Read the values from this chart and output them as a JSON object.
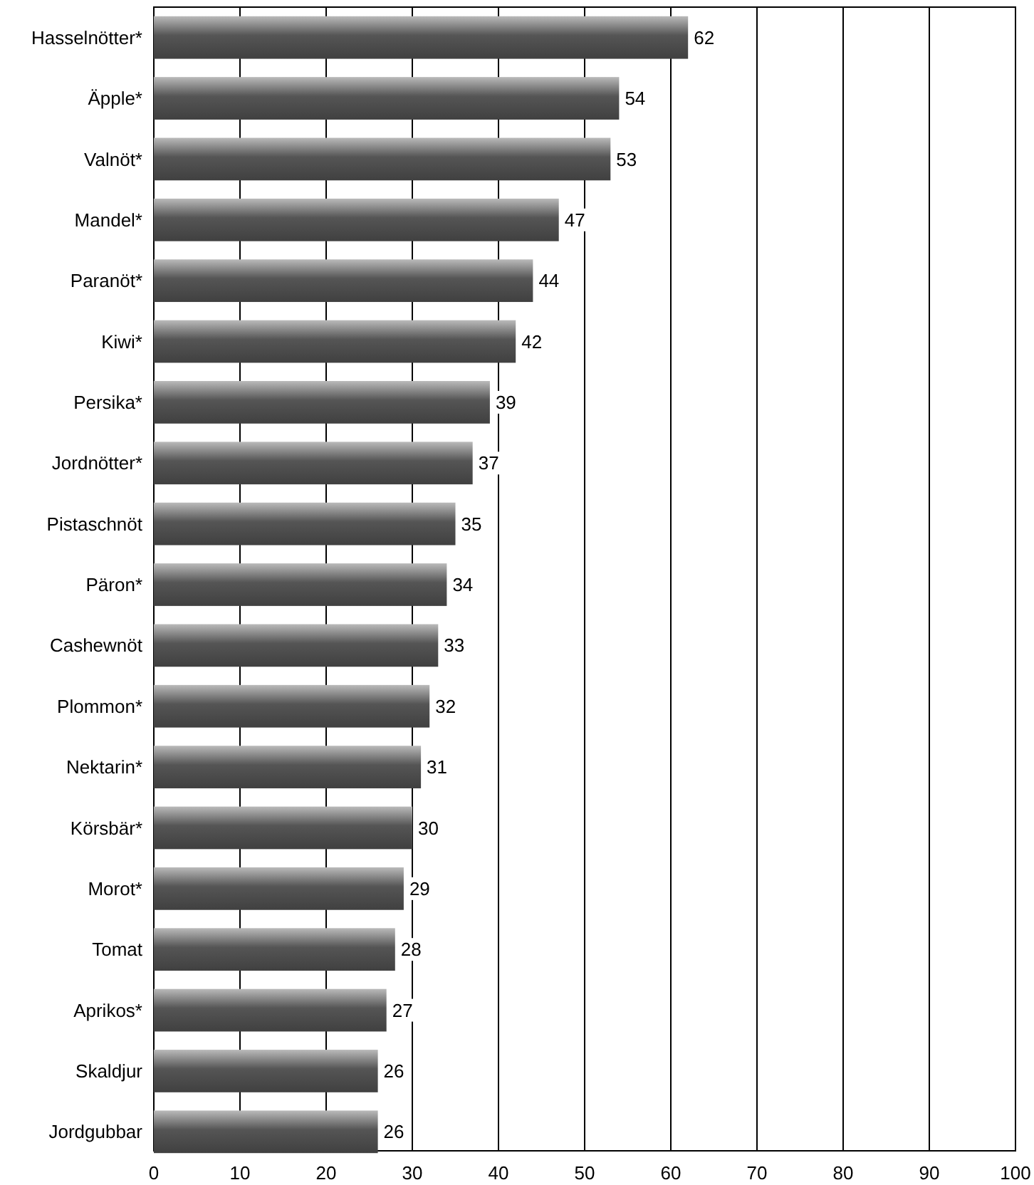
{
  "chart_data": {
    "type": "bar",
    "orientation": "horizontal",
    "categories": [
      "Hasselnötter*",
      "Äpple*",
      "Valnöt*",
      "Mandel*",
      "Paranöt*",
      "Kiwi*",
      "Persika*",
      "Jordnötter*",
      "Pistaschnöt",
      "Päron*",
      "Cashewnöt",
      "Plommon*",
      "Nektarin*",
      "Körsbär*",
      "Morot*",
      "Tomat",
      "Aprikos*",
      "Skaldjur",
      "Jordgubbar"
    ],
    "values": [
      62,
      54,
      53,
      47,
      44,
      42,
      39,
      37,
      35,
      34,
      33,
      32,
      31,
      30,
      29,
      28,
      27,
      26,
      26
    ],
    "color": "#555555",
    "xlim": [
      0,
      100
    ],
    "xticks": [
      0,
      10,
      20,
      30,
      40,
      50,
      60,
      70,
      80,
      90,
      100
    ],
    "grid": "x",
    "data_labels": true
  }
}
